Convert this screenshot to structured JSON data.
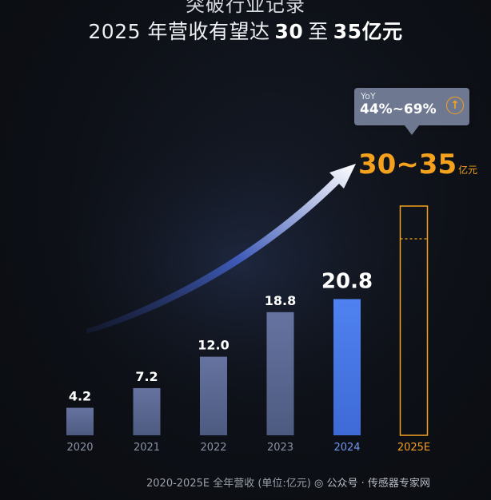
{
  "header": {
    "partial_title": "突破行业记录",
    "title_prefix": "2025 年营收有望达",
    "title_low": "30",
    "title_mid": "至",
    "title_high": "35",
    "title_unit": "亿元"
  },
  "yoy": {
    "label": "YoY",
    "range": "44%~69%",
    "icon": "arrow-up-icon"
  },
  "target": {
    "value": "30~35",
    "unit": "亿元"
  },
  "footer": {
    "note": "2020-2025E 全年营收 (单位:亿元)",
    "watermark": "公众号 · 传感器专家网",
    "watermark_icon": "wechat-icon"
  },
  "colors": {
    "bar_regular": "#5b6a92",
    "bar_highlight": "#4a7be8",
    "forecast": "#f4a11e",
    "axis_label": "#8a93a6"
  },
  "chart_data": {
    "type": "bar",
    "title": "2025 年营收有望达 30 至 35 亿元",
    "xlabel": "",
    "ylabel": "全年营收 (单位:亿元)",
    "categories": [
      "2020",
      "2021",
      "2022",
      "2023",
      "2024",
      "2025E"
    ],
    "values": [
      4.2,
      7.2,
      12.0,
      18.8,
      20.8,
      null
    ],
    "labels": [
      "4.2",
      "7.2",
      "12.0",
      "18.8",
      "20.8",
      ""
    ],
    "forecast": {
      "category": "2025E",
      "low": 30,
      "high": 35
    },
    "highlight": "2024",
    "ylim": [
      0,
      35
    ],
    "grid": false,
    "annotations": [
      "YoY 44%~69%",
      "30~35 亿元"
    ]
  }
}
